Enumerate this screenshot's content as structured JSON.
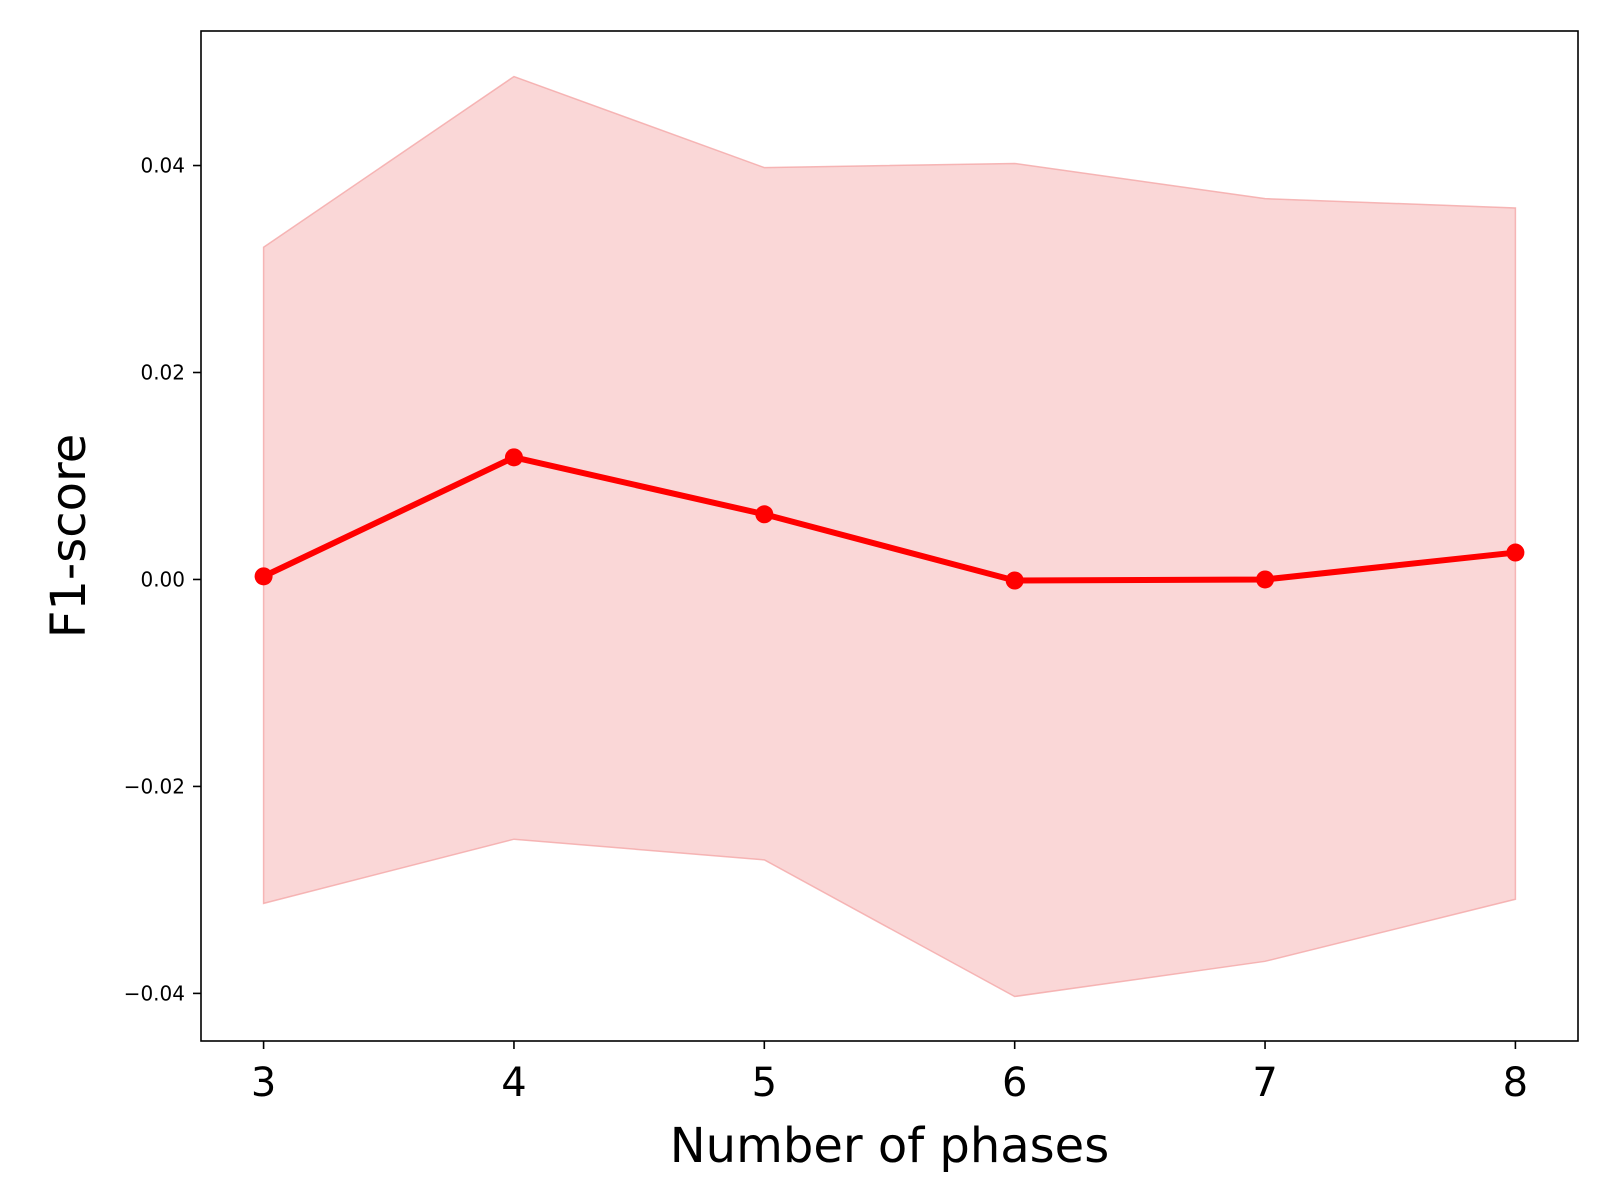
{
  "chart_data": {
    "type": "line",
    "title": "",
    "xlabel": "Number of phases",
    "ylabel": "F1-score",
    "x": [
      3,
      4,
      5,
      6,
      7,
      8
    ],
    "x_tick_labels": [
      "3",
      "4",
      "5",
      "6",
      "7",
      "8"
    ],
    "y_ticks": [
      -0.04,
      -0.02,
      0.0,
      0.02,
      0.04
    ],
    "y_tick_labels": [
      "−0.04",
      "−0.02",
      "0.00",
      "0.02",
      "0.04"
    ],
    "xlim": [
      2.75,
      8.25
    ],
    "ylim": [
      -0.0446,
      0.053
    ],
    "grid": false,
    "series": [
      {
        "values": [
          0.0003,
          0.0118,
          0.0063,
          -0.0001,
          0.0,
          0.0026
        ],
        "band_upper": [
          0.0321,
          0.0486,
          0.0398,
          0.0402,
          0.0368,
          0.0359
        ],
        "band_lower": [
          -0.0313,
          -0.0251,
          -0.0271,
          -0.0403,
          -0.0369,
          -0.0309
        ],
        "color": "#ff0000",
        "band_color": "#f4a6a6"
      }
    ]
  }
}
